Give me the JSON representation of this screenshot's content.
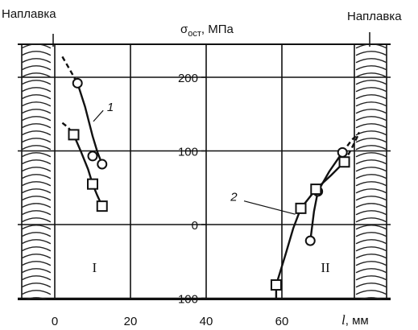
{
  "chart_data": {
    "type": "line",
    "title": "",
    "ylabel": "σ",
    "ylabel_sub": "ост",
    "ylabel_unit": ", МПа",
    "xlabel": "l",
    "xlabel_unit": ", мм",
    "xlim": [
      0,
      80
    ],
    "ylim": [
      -100,
      250
    ],
    "x_ticks": [
      "0",
      "20",
      "40",
      "60"
    ],
    "y_ticks": [
      "200",
      "100",
      "0",
      "−100"
    ],
    "x_tick_values": [
      0,
      20,
      40,
      60
    ],
    "y_tick_values": [
      200,
      100,
      0,
      -100
    ],
    "weld_label_left": "Наплавка",
    "weld_label_right": "Наплавка",
    "zone_labels": [
      "I",
      "II"
    ],
    "series": [
      {
        "name": "1",
        "marker": "circle",
        "points": [
          [
            6,
            192
          ],
          [
            10,
            93
          ],
          [
            12.5,
            82
          ],
          [
            67.5,
            -22
          ],
          [
            69.5,
            45
          ],
          [
            76,
            98
          ]
        ],
        "curves": [
          {
            "solid": [
              [
                6,
                192
              ],
              [
                8,
                160
              ],
              [
                10,
                120
              ],
              [
                11.3,
                98
              ],
              [
                12.5,
                82
              ]
            ],
            "dashed": [
              [
                2,
                228
              ],
              [
                4,
                210
              ],
              [
                6,
                192
              ]
            ]
          },
          {
            "solid": [
              [
                67.5,
                -22
              ],
              [
                68.5,
                18
              ],
              [
                69.5,
                45
              ],
              [
                72.5,
                72
              ],
              [
                76,
                98
              ]
            ],
            "dashed": [
              [
                76,
                98
              ],
              [
                78.5,
                115
              ],
              [
                80.5,
                125
              ]
            ]
          }
        ]
      },
      {
        "name": "2",
        "marker": "square",
        "points": [
          [
            5,
            122
          ],
          [
            10,
            55
          ],
          [
            12.5,
            25
          ],
          [
            58.5,
            -82
          ],
          [
            65,
            22
          ],
          [
            69,
            48
          ],
          [
            76.5,
            85
          ]
        ],
        "curves": [
          {
            "solid": [
              [
                5,
                122
              ],
              [
                7,
                98
              ],
              [
                8.8,
                75
              ],
              [
                10,
                55
              ],
              [
                11.2,
                40
              ],
              [
                12.5,
                25
              ]
            ],
            "dashed": [
              [
                2,
                138
              ],
              [
                3.5,
                132
              ],
              [
                5,
                122
              ]
            ]
          },
          {
            "solid": [
              [
                58.5,
                -100
              ],
              [
                58.5,
                -82
              ],
              [
                61,
                -40
              ],
              [
                63,
                -5
              ],
              [
                65,
                22
              ],
              [
                69,
                48
              ],
              [
                73,
                67
              ],
              [
                76.5,
                85
              ]
            ],
            "dashed": [
              [
                76.5,
                85
              ],
              [
                78.5,
                104
              ],
              [
                80,
                120
              ]
            ]
          }
        ]
      }
    ]
  }
}
